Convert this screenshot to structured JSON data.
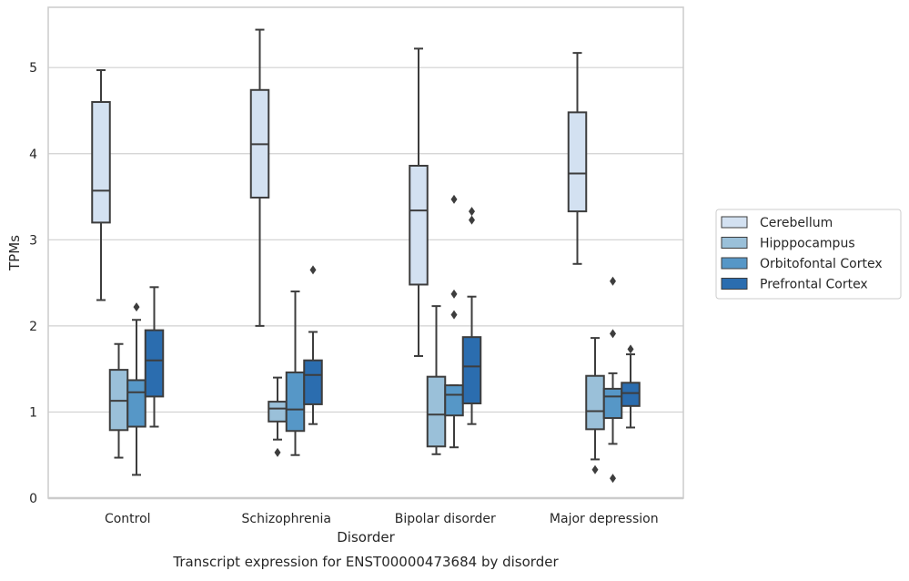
{
  "chart_data": {
    "type": "boxplot",
    "title": "",
    "caption": "Transcript expression for ENST00000473684 by disorder",
    "xlabel": "Disorder",
    "ylabel": "TPMs",
    "ylim": [
      0,
      5.7
    ],
    "yticks": [
      0,
      1,
      2,
      3,
      4,
      5
    ],
    "grid": "horizontal",
    "legend_position": "right",
    "categories": [
      "Control",
      "Schizophrenia",
      "Bipolar disorder",
      "Major depression"
    ],
    "series": [
      {
        "name": "Cerebellum",
        "color": "#d3e1f1",
        "boxes": [
          {
            "whisker_low": 2.3,
            "q1": 3.2,
            "median": 3.57,
            "q3": 4.6,
            "whisker_high": 4.97,
            "outliers": []
          },
          {
            "whisker_low": 2.0,
            "q1": 3.49,
            "median": 4.11,
            "q3": 4.74,
            "whisker_high": 5.44,
            "outliers": []
          },
          {
            "whisker_low": 1.65,
            "q1": 2.48,
            "median": 3.34,
            "q3": 3.86,
            "whisker_high": 5.22,
            "outliers": []
          },
          {
            "whisker_low": 2.72,
            "q1": 3.33,
            "median": 3.77,
            "q3": 4.48,
            "whisker_high": 5.17,
            "outliers": []
          }
        ]
      },
      {
        "name": "Hipppocampus",
        "color": "#9ac0d9",
        "boxes": [
          {
            "whisker_low": 0.47,
            "q1": 0.79,
            "median": 1.13,
            "q3": 1.49,
            "whisker_high": 1.79,
            "outliers": []
          },
          {
            "whisker_low": 0.68,
            "q1": 0.89,
            "median": 1.04,
            "q3": 1.12,
            "whisker_high": 1.4,
            "outliers": [
              0.53
            ]
          },
          {
            "whisker_low": 0.51,
            "q1": 0.6,
            "median": 0.97,
            "q3": 1.41,
            "whisker_high": 2.23,
            "outliers": []
          },
          {
            "whisker_low": 0.45,
            "q1": 0.8,
            "median": 1.01,
            "q3": 1.42,
            "whisker_high": 1.86,
            "outliers": [
              0.33
            ]
          }
        ]
      },
      {
        "name": "Orbitofontal Cortex",
        "color": "#5697c7",
        "boxes": [
          {
            "whisker_low": 0.27,
            "q1": 0.83,
            "median": 1.23,
            "q3": 1.37,
            "whisker_high": 2.07,
            "outliers": [
              2.22
            ]
          },
          {
            "whisker_low": 0.5,
            "q1": 0.78,
            "median": 1.03,
            "q3": 1.46,
            "whisker_high": 2.4,
            "outliers": []
          },
          {
            "whisker_low": 0.59,
            "q1": 0.96,
            "median": 1.2,
            "q3": 1.31,
            "whisker_high": 1.31,
            "outliers": [
              2.13,
              2.37,
              3.47
            ]
          },
          {
            "whisker_low": 0.63,
            "q1": 0.93,
            "median": 1.18,
            "q3": 1.27,
            "whisker_high": 1.45,
            "outliers": [
              0.23,
              1.91,
              2.52
            ]
          }
        ]
      },
      {
        "name": "Prefrontal Cortex",
        "color": "#2b6daf",
        "boxes": [
          {
            "whisker_low": 0.83,
            "q1": 1.18,
            "median": 1.6,
            "q3": 1.95,
            "whisker_high": 2.45,
            "outliers": []
          },
          {
            "whisker_low": 0.86,
            "q1": 1.09,
            "median": 1.43,
            "q3": 1.6,
            "whisker_high": 1.93,
            "outliers": [
              2.65
            ]
          },
          {
            "whisker_low": 0.86,
            "q1": 1.1,
            "median": 1.53,
            "q3": 1.87,
            "whisker_high": 2.34,
            "outliers": [
              3.23,
              3.33
            ]
          },
          {
            "whisker_low": 0.82,
            "q1": 1.07,
            "median": 1.22,
            "q3": 1.34,
            "whisker_high": 1.67,
            "outliers": [
              1.73
            ]
          }
        ]
      }
    ]
  }
}
